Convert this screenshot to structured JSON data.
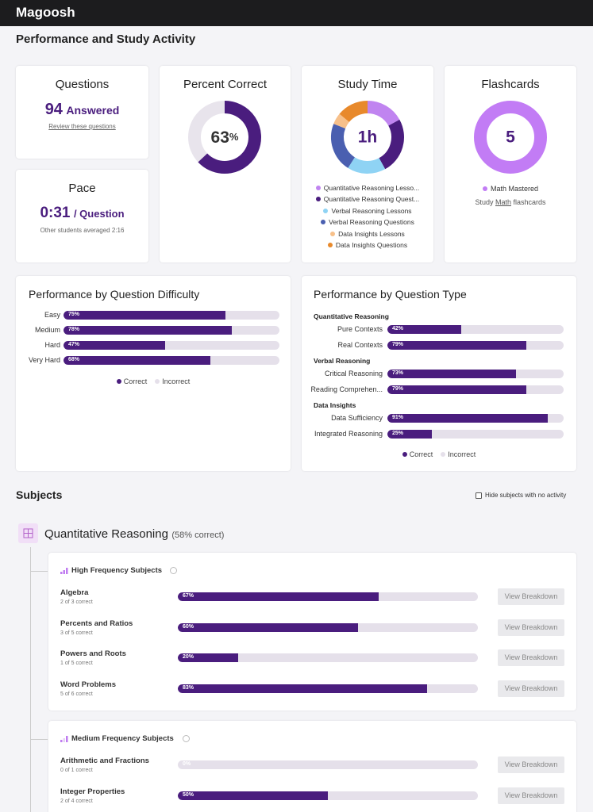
{
  "header": {
    "logo": "Magoosh"
  },
  "page_title": "Performance and Study Activity",
  "cards": {
    "questions": {
      "title": "Questions",
      "count": "94",
      "count_unit": "Answered",
      "link": "Review these questions"
    },
    "pace": {
      "title": "Pace",
      "value": "0:31",
      "unit": "/ Question",
      "note": "Other students averaged 2:16"
    },
    "percent_correct": {
      "title": "Percent Correct",
      "value": 63,
      "unit": "%"
    },
    "study_time": {
      "title": "Study Time",
      "value": "1h",
      "legend": [
        {
          "name": "Quantitative Reasoning Lesso...",
          "color": "#c084f0",
          "value": 17
        },
        {
          "name": "Quantitative Reasoning Quest...",
          "color": "#4a1d7e",
          "value": 25
        },
        {
          "name": "Verbal Reasoning Lessons",
          "color": "#8fd3f4",
          "value": 17
        },
        {
          "name": "Verbal Reasoning Questions",
          "color": "#4a5fb0",
          "value": 22
        },
        {
          "name": "Data Insights Lessons",
          "color": "#f7c08a",
          "value": 5
        },
        {
          "name": "Data Insights Questions",
          "color": "#e8892b",
          "value": 14
        }
      ]
    },
    "flashcards": {
      "title": "Flashcards",
      "value": "5",
      "legend": {
        "name": "Math Mastered",
        "color": "#c27cf5"
      },
      "link_pre": "Study",
      "link": "Math",
      "link_post": "flashcards"
    }
  },
  "difficulty": {
    "title": "Performance by Question Difficulty",
    "rows": [
      {
        "label": "Easy",
        "value": 75,
        "value_label": "75%"
      },
      {
        "label": "Medium",
        "value": 78,
        "value_label": "78%"
      },
      {
        "label": "Hard",
        "value": 47,
        "value_label": "47%"
      },
      {
        "label": "Very Hard",
        "value": 68,
        "value_label": "68%"
      }
    ],
    "legend": {
      "correct": "Correct",
      "incorrect": "Incorrect"
    }
  },
  "question_type": {
    "title": "Performance by Question Type",
    "groups": [
      {
        "name": "Quantitative Reasoning",
        "rows": [
          {
            "label": "Pure Contexts",
            "value": 42,
            "value_label": "42%"
          },
          {
            "label": "Real Contexts",
            "value": 79,
            "value_label": "79%"
          }
        ]
      },
      {
        "name": "Verbal Reasoning",
        "rows": [
          {
            "label": "Critical Reasoning",
            "value": 73,
            "value_label": "73%"
          },
          {
            "label": "Reading Comprehen...",
            "value": 79,
            "value_label": "79%"
          }
        ]
      },
      {
        "name": "Data Insights",
        "rows": [
          {
            "label": "Data Sufficiency",
            "value": 91,
            "value_label": "91%"
          },
          {
            "label": "Integrated Reasoning",
            "value": 25,
            "value_label": "25%"
          }
        ]
      }
    ],
    "legend": {
      "correct": "Correct",
      "incorrect": "Incorrect"
    }
  },
  "subjects": {
    "title": "Subjects",
    "hide_label": "Hide subjects with no activity",
    "section": {
      "name": "Quantitative Reasoning",
      "summary": "(58% correct)",
      "groups": [
        {
          "name": "High Frequency Subjects",
          "rows": [
            {
              "name": "Algebra",
              "detail": "2 of 3 correct",
              "value": 67,
              "value_label": "67%",
              "button": "View Breakdown"
            },
            {
              "name": "Percents and Ratios",
              "detail": "3 of 5 correct",
              "value": 60,
              "value_label": "60%",
              "button": "View Breakdown"
            },
            {
              "name": "Powers and Roots",
              "detail": "1 of 5 correct",
              "value": 20,
              "value_label": "20%",
              "button": "View Breakdown"
            },
            {
              "name": "Word Problems",
              "detail": "5 of 6 correct",
              "value": 83,
              "value_label": "83%",
              "button": "View Breakdown"
            }
          ]
        },
        {
          "name": "Medium Frequency Subjects",
          "rows": [
            {
              "name": "Arithmetic and Fractions",
              "detail": "0 of 1 correct",
              "value": 0,
              "value_label": "0%",
              "button": "View Breakdown"
            },
            {
              "name": "Integer Properties",
              "detail": "2 of 4 correct",
              "value": 50,
              "value_label": "50%",
              "button": "View Breakdown"
            }
          ]
        }
      ]
    }
  }
}
